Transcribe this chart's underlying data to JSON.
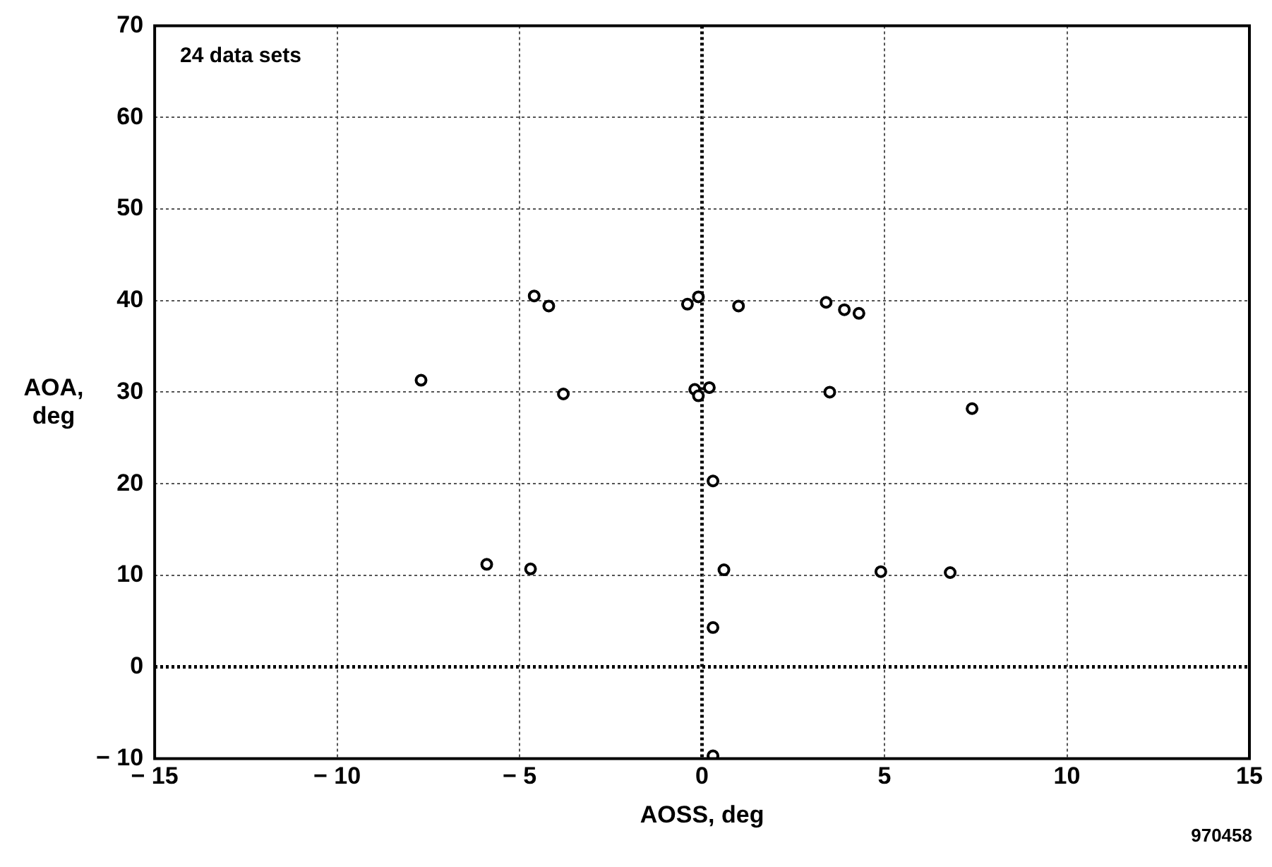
{
  "chart_data": {
    "type": "scatter",
    "xlabel": "AOSS, deg",
    "ylabel": "AOA,\ndeg",
    "annotations": [
      "24 data sets",
      "970458"
    ],
    "x": [
      -7.7,
      -5.9,
      -4.7,
      -4.6,
      -4.2,
      -3.8,
      -0.4,
      -0.1,
      -0.2,
      -0.1,
      0.2,
      0.3,
      0.3,
      0.6,
      0.3,
      1.0,
      3.4,
      3.5,
      3.9,
      4.3,
      4.9,
      6.8,
      7.4
    ],
    "series": [
      {
        "color": "#000000",
        "values": [
          31.3,
          11.2,
          10.7,
          40.5,
          39.4,
          29.8,
          39.6,
          40.4,
          30.3,
          29.6,
          30.5,
          20.3,
          4.3,
          10.6,
          -9.7,
          39.4,
          39.8,
          30.0,
          39.0,
          38.6,
          10.4,
          10.3,
          28.2
        ]
      }
    ],
    "xlim": [
      -15,
      15
    ],
    "xticks": [
      {
        "value": -15,
        "label": "− 15"
      },
      {
        "value": -10,
        "label": "− 10"
      },
      {
        "value": -5,
        "label": "− 5"
      },
      0,
      5,
      10,
      15
    ],
    "ylim": [
      -10,
      70
    ],
    "yticks": [
      {
        "value": -10,
        "label": "− 10"
      },
      0,
      10,
      20,
      30,
      40,
      50,
      60,
      70
    ],
    "grid": true,
    "marker": "circle",
    "legend": false
  }
}
